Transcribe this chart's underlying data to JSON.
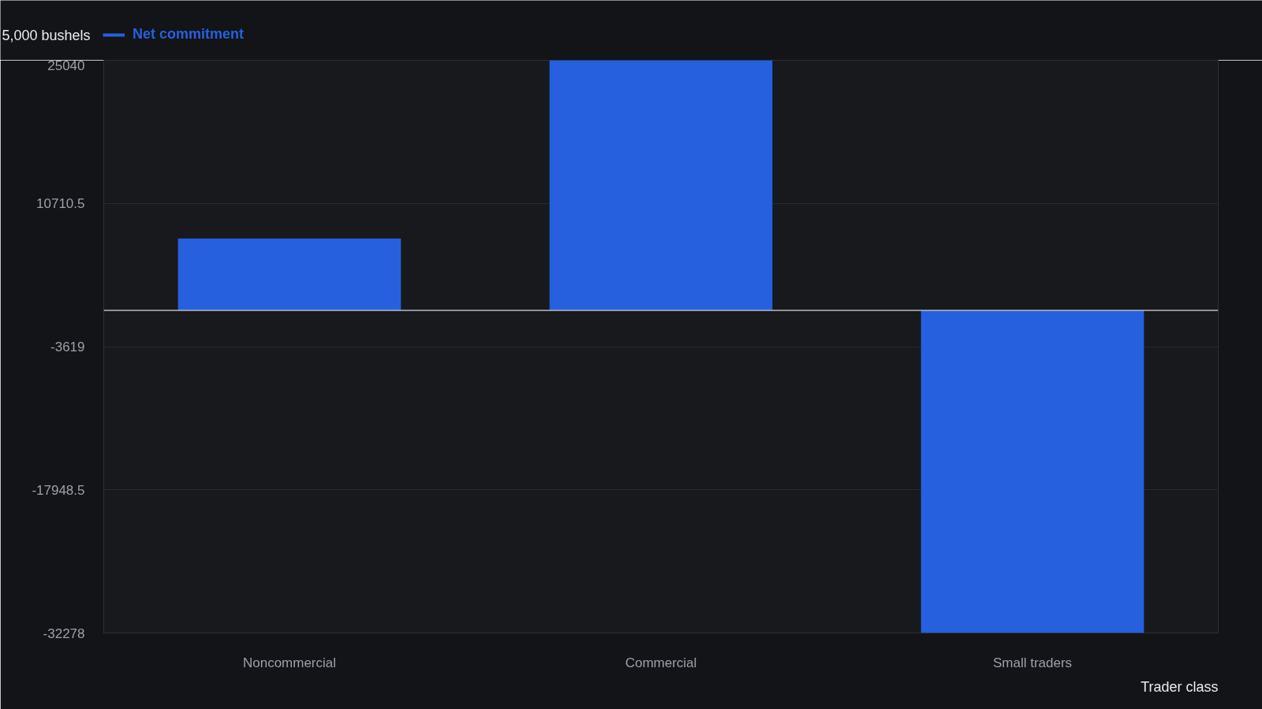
{
  "chart_data": {
    "type": "bar",
    "ylabel": "5,000 bushels",
    "xlabel": "Trader class",
    "categories": [
      "Noncommercial",
      "Commercial",
      "Small traders"
    ],
    "series": [
      {
        "name": "Net commitment",
        "color": "#2660de",
        "values": [
          7200,
          25040,
          -32278
        ]
      }
    ],
    "ylim": [
      -32278,
      25040
    ],
    "yticks": [
      -32278,
      -17948.5,
      -3619,
      10710.5,
      25040
    ],
    "grid": "y",
    "legend": "top left",
    "ref_lines": [
      {
        "axis": "y",
        "value": 0,
        "color": "#b9bcc2"
      }
    ]
  }
}
